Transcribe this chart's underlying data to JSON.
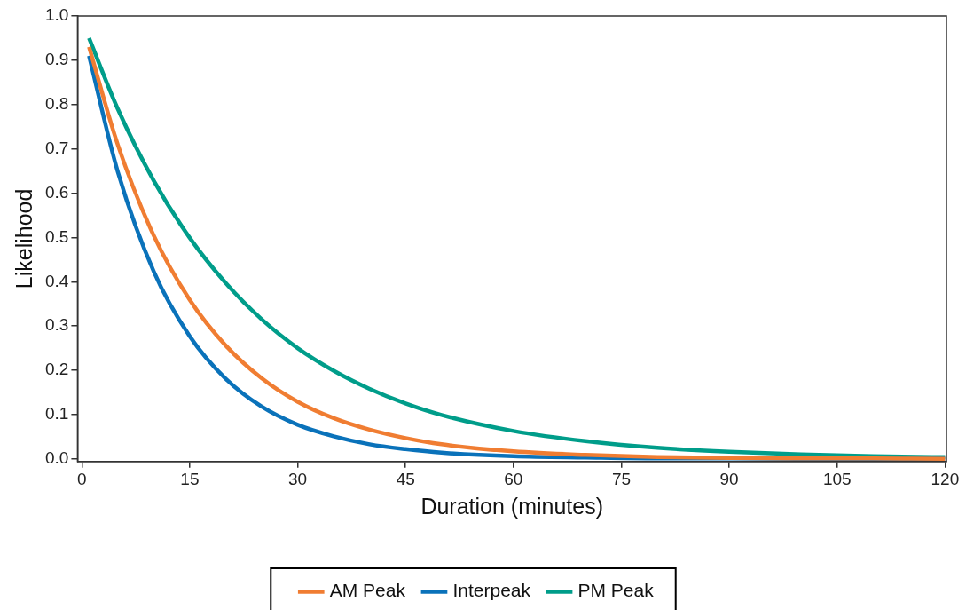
{
  "chart_data": {
    "type": "line",
    "xlabel": "Duration (minutes)",
    "ylabel": "Likelihood",
    "x": [
      1,
      5,
      10,
      15,
      20,
      25,
      30,
      35,
      40,
      45,
      50,
      60,
      70,
      80,
      90,
      100,
      110,
      120
    ],
    "series": [
      {
        "name": "AM Peak",
        "color": "#f07d32",
        "values": [
          0.93,
          0.709,
          0.504,
          0.359,
          0.256,
          0.182,
          0.129,
          0.092,
          0.066,
          0.047,
          0.033,
          0.017,
          0.009,
          0.004,
          0.002,
          0.001,
          0.001,
          0
        ]
      },
      {
        "name": "Interpeak",
        "color": "#0a72ba",
        "values": [
          0.91,
          0.648,
          0.423,
          0.277,
          0.181,
          0.118,
          0.077,
          0.051,
          0.033,
          0.022,
          0.014,
          0.006,
          0.003,
          0.001,
          0.001,
          0,
          0,
          0
        ]
      },
      {
        "name": "PM Peak",
        "color": "#009d8a",
        "values": [
          0.95,
          0.79,
          0.628,
          0.499,
          0.397,
          0.315,
          0.25,
          0.199,
          0.158,
          0.125,
          0.099,
          0.063,
          0.04,
          0.025,
          0.016,
          0.01,
          0.006,
          0.004
        ]
      }
    ],
    "xlim": [
      -0.6,
      120.2
    ],
    "xticks": [
      0,
      15,
      30,
      45,
      60,
      75,
      90,
      105,
      120
    ],
    "ylim": [
      -0.006,
      1.0
    ],
    "yticks": [
      {
        "value": 0,
        "label": "0.0"
      },
      0.1,
      0.2,
      0.3,
      0.4,
      0.5,
      0.6,
      0.7,
      0.8,
      0.9,
      {
        "value": 1,
        "label": "1.0"
      }
    ],
    "grid": false,
    "legend": "bottom",
    "marker": "none",
    "line_style": "solid"
  }
}
